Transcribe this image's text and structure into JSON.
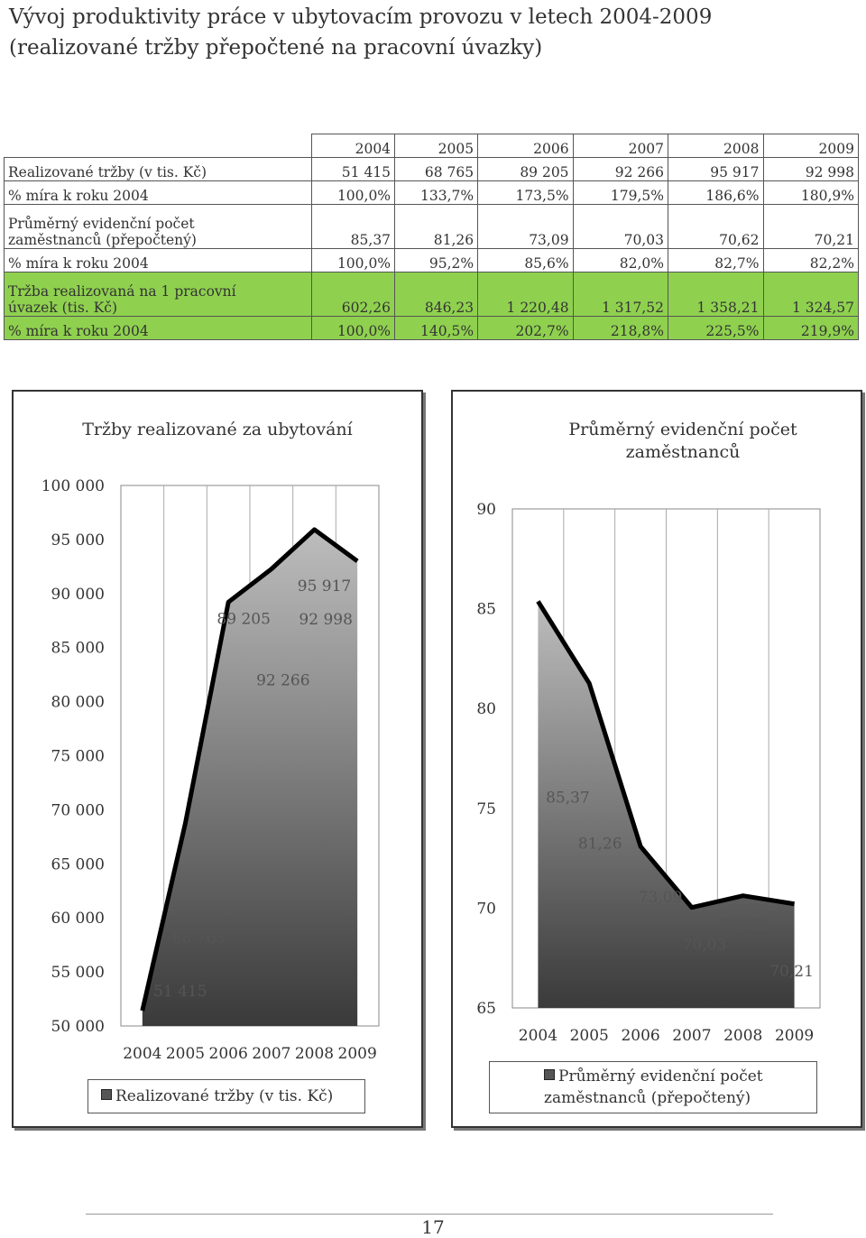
{
  "page": {
    "title_line1": "Vývoj produktivity práce v ubytovacím provozu v letech 2004-2009",
    "title_line2": "(realizované tržby přepočtené na pracovní úvazky)",
    "page_number": "17"
  },
  "table": {
    "years": [
      "2004",
      "2005",
      "2006",
      "2007",
      "2008",
      "2009"
    ],
    "rows": [
      {
        "label1": "Realizované tržby (v tis. Kč)",
        "label2": "",
        "values": [
          "51 415",
          "68 765",
          "89 205",
          "92 266",
          "95 917",
          "92 998"
        ]
      },
      {
        "label1": "% míra k roku 2004",
        "label2": "",
        "values": [
          "100,0%",
          "133,7%",
          "173,5%",
          "179,5%",
          "186,6%",
          "180,9%"
        ]
      },
      {
        "label1": "Průměrný evidenční počet",
        "label2": "zaměstnanců (přepočtený)",
        "values": [
          "85,37",
          "81,26",
          "73,09",
          "70,03",
          "70,62",
          "70,21"
        ]
      },
      {
        "label1": "% míra k roku 2004",
        "label2": "",
        "values": [
          "100,0%",
          "95,2%",
          "85,6%",
          "82,0%",
          "82,7%",
          "82,2%"
        ]
      },
      {
        "label1": "Tržba realizovaná na 1 pracovní",
        "label2": "úvazek (tis. Kč)",
        "values": [
          "602,26",
          "846,23",
          "1 220,48",
          "1 317,52",
          "1 358,21",
          "1 324,57"
        ]
      },
      {
        "label1": "% míra k roku 2004",
        "label2": "",
        "values": [
          "100,0%",
          "140,5%",
          "202,7%",
          "218,8%",
          "225,5%",
          "219,9%"
        ]
      }
    ]
  },
  "chart_data": [
    {
      "type": "area",
      "title": "Tržby realizované za ubytování",
      "categories": [
        "2004",
        "2005",
        "2006",
        "2007",
        "2008",
        "2009"
      ],
      "series": [
        {
          "name": "Realizované tržby (v tis. Kč)",
          "values": [
            51415,
            68765,
            89205,
            92266,
            95917,
            92998
          ]
        }
      ],
      "data_labels": [
        "51 415",
        "68 765",
        "89 205",
        "92 266",
        "95 917",
        "92 998"
      ],
      "ylim": [
        50000,
        100000
      ],
      "yticks": [
        50000,
        55000,
        60000,
        65000,
        70000,
        75000,
        80000,
        85000,
        90000,
        95000,
        100000
      ],
      "ytick_labels": [
        "50 000",
        "55 000",
        "60 000",
        "65 000",
        "70 000",
        "75 000",
        "80 000",
        "85 000",
        "90 000",
        "95 000",
        "100 000"
      ],
      "grid": true,
      "legend": "bottom",
      "legend_label": "Realizované tržby (v tis. Kč)",
      "colors": {
        "fill_top": "#bdbdbd",
        "fill_bottom": "#3a3a3a",
        "line": "#000000"
      }
    },
    {
      "type": "area",
      "title": "Průměrný evidenční počet zaměstnanců",
      "title_line1": "Průměrný evidenční počet",
      "title_line2": "zaměstnanců",
      "categories": [
        "2004",
        "2005",
        "2006",
        "2007",
        "2008",
        "2009"
      ],
      "series": [
        {
          "name": "Průměrný evidenční počet zaměstnanců (přepočtený)",
          "values": [
            85.37,
            81.26,
            73.09,
            70.03,
            70.62,
            70.21
          ]
        }
      ],
      "data_labels": [
        "85,37",
        "81,26",
        "73,09",
        "70,03",
        "70,62",
        "70,21"
      ],
      "ylim": [
        65,
        90
      ],
      "yticks": [
        65,
        70,
        75,
        80,
        85,
        90
      ],
      "ytick_labels": [
        "65",
        "70",
        "75",
        "80",
        "85",
        "90"
      ],
      "grid": true,
      "legend": "bottom",
      "legend_line1": "Průměrný evidenční počet",
      "legend_line2": "zaměstnanců (přepočtený)",
      "colors": {
        "fill_top": "#bdbdbd",
        "fill_bottom": "#3a3a3a",
        "line": "#000000"
      }
    }
  ]
}
